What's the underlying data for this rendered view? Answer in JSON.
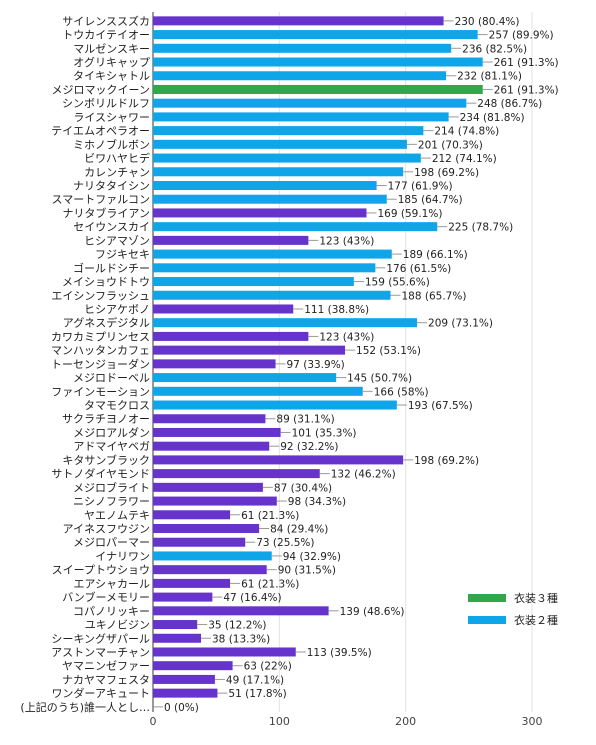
{
  "chart_data": {
    "type": "bar",
    "orientation": "horizontal",
    "xlim": [
      0,
      300
    ],
    "x_ticks": [
      "0",
      "100",
      "200",
      "300"
    ],
    "grid": true,
    "legend_position": "right",
    "legend": [
      {
        "name": "衣装３種",
        "color": "#2ea84a"
      },
      {
        "name": "衣装２種",
        "color": "#0ea5e9"
      }
    ],
    "colors": {
      "purple": "#6633cc",
      "blue": "#0ea5e9",
      "green": "#2ea84a"
    },
    "bars": [
      {
        "label": "サイレンススズカ",
        "value": 230,
        "display": "230 (80.4%)",
        "color": "purple"
      },
      {
        "label": "トウカイテイオー",
        "value": 257,
        "display": "257 (89.9%)",
        "color": "blue"
      },
      {
        "label": "マルゼンスキー",
        "value": 236,
        "display": "236 (82.5%)",
        "color": "blue"
      },
      {
        "label": "オグリキャップ",
        "value": 261,
        "display": "261 (91.3%)",
        "color": "blue"
      },
      {
        "label": "タイキシャトル",
        "value": 232,
        "display": "232 (81.1%)",
        "color": "blue"
      },
      {
        "label": "メジロマックイーン",
        "value": 261,
        "display": "261 (91.3%)",
        "color": "green"
      },
      {
        "label": "シンボリルドルフ",
        "value": 248,
        "display": "248 (86.7%)",
        "color": "blue"
      },
      {
        "label": "ライスシャワー",
        "value": 234,
        "display": "234 (81.8%)",
        "color": "blue"
      },
      {
        "label": "テイエムオペラオー",
        "value": 214,
        "display": "214 (74.8%)",
        "color": "blue"
      },
      {
        "label": "ミホノブルボン",
        "value": 201,
        "display": "201 (70.3%)",
        "color": "blue"
      },
      {
        "label": "ビワハヤヒデ",
        "value": 212,
        "display": "212 (74.1%)",
        "color": "blue"
      },
      {
        "label": "カレンチャン",
        "value": 198,
        "display": "198 (69.2%)",
        "color": "blue"
      },
      {
        "label": "ナリタタイシン",
        "value": 177,
        "display": "177 (61.9%)",
        "color": "blue"
      },
      {
        "label": "スマートファルコン",
        "value": 185,
        "display": "185 (64.7%)",
        "color": "blue"
      },
      {
        "label": "ナリタブライアン",
        "value": 169,
        "display": "169 (59.1%)",
        "color": "purple"
      },
      {
        "label": "セイウンスカイ",
        "value": 225,
        "display": "225 (78.7%)",
        "color": "blue"
      },
      {
        "label": "ヒシアマゾン",
        "value": 123,
        "display": "123 (43%)",
        "color": "purple"
      },
      {
        "label": "フジキセキ",
        "value": 189,
        "display": "189 (66.1%)",
        "color": "blue"
      },
      {
        "label": "ゴールドシチー",
        "value": 176,
        "display": "176 (61.5%)",
        "color": "blue"
      },
      {
        "label": "メイショウドトウ",
        "value": 159,
        "display": "159 (55.6%)",
        "color": "blue"
      },
      {
        "label": "エイシンフラッシュ",
        "value": 188,
        "display": "188 (65.7%)",
        "color": "blue"
      },
      {
        "label": "ヒシアケボノ",
        "value": 111,
        "display": "111 (38.8%)",
        "color": "purple"
      },
      {
        "label": "アグネスデジタル",
        "value": 209,
        "display": "209 (73.1%)",
        "color": "blue"
      },
      {
        "label": "カワカミプリンセス",
        "value": 123,
        "display": "123 (43%)",
        "color": "purple"
      },
      {
        "label": "マンハッタンカフェ",
        "value": 152,
        "display": "152 (53.1%)",
        "color": "purple"
      },
      {
        "label": "トーセンジョーダン",
        "value": 97,
        "display": "97 (33.9%)",
        "color": "purple"
      },
      {
        "label": "メジロドーベル",
        "value": 145,
        "display": "145 (50.7%)",
        "color": "blue"
      },
      {
        "label": "ファインモーション",
        "value": 166,
        "display": "166 (58%)",
        "color": "blue"
      },
      {
        "label": "タマモクロス",
        "value": 193,
        "display": "193 (67.5%)",
        "color": "blue"
      },
      {
        "label": "サクラチヨノオー",
        "value": 89,
        "display": "89 (31.1%)",
        "color": "purple"
      },
      {
        "label": "メジロアルダン",
        "value": 101,
        "display": "101 (35.3%)",
        "color": "purple"
      },
      {
        "label": "アドマイヤベガ",
        "value": 92,
        "display": "92 (32.2%)",
        "color": "purple"
      },
      {
        "label": "キタサンブラック",
        "value": 198,
        "display": "198 (69.2%)",
        "color": "purple"
      },
      {
        "label": "サトノダイヤモンド",
        "value": 132,
        "display": "132 (46.2%)",
        "color": "purple"
      },
      {
        "label": "メジロブライト",
        "value": 87,
        "display": "87 (30.4%)",
        "color": "purple"
      },
      {
        "label": "ニシノフラワー",
        "value": 98,
        "display": "98 (34.3%)",
        "color": "purple"
      },
      {
        "label": "ヤエノムテキ",
        "value": 61,
        "display": "61 (21.3%)",
        "color": "purple"
      },
      {
        "label": "アイネスフウジン",
        "value": 84,
        "display": "84 (29.4%)",
        "color": "purple"
      },
      {
        "label": "メジロパーマー",
        "value": 73,
        "display": "73 (25.5%)",
        "color": "purple"
      },
      {
        "label": "イナリワン",
        "value": 94,
        "display": "94 (32.9%)",
        "color": "blue"
      },
      {
        "label": "スイープトウショウ",
        "value": 90,
        "display": "90 (31.5%)",
        "color": "purple"
      },
      {
        "label": "エアシャカール",
        "value": 61,
        "display": "61 (21.3%)",
        "color": "purple"
      },
      {
        "label": "バンブーメモリー",
        "value": 47,
        "display": "47 (16.4%)",
        "color": "purple"
      },
      {
        "label": "コパノリッキー",
        "value": 139,
        "display": "139 (48.6%)",
        "color": "purple"
      },
      {
        "label": "ユキノビジン",
        "value": 35,
        "display": "35 (12.2%)",
        "color": "purple"
      },
      {
        "label": "シーキングザパール",
        "value": 38,
        "display": "38 (13.3%)",
        "color": "purple"
      },
      {
        "label": "アストンマーチャン",
        "value": 113,
        "display": "113 (39.5%)",
        "color": "purple"
      },
      {
        "label": "ヤマニンゼファー",
        "value": 63,
        "display": "63 (22%)",
        "color": "purple"
      },
      {
        "label": "ナカヤマフェスタ",
        "value": 49,
        "display": "49 (17.1%)",
        "color": "purple"
      },
      {
        "label": "ワンダーアキュート",
        "value": 51,
        "display": "51 (17.8%)",
        "color": "purple"
      },
      {
        "label": "(上記のうち)誰一人とし…",
        "value": 0,
        "display": "0 (0%)",
        "color": "purple"
      }
    ]
  }
}
